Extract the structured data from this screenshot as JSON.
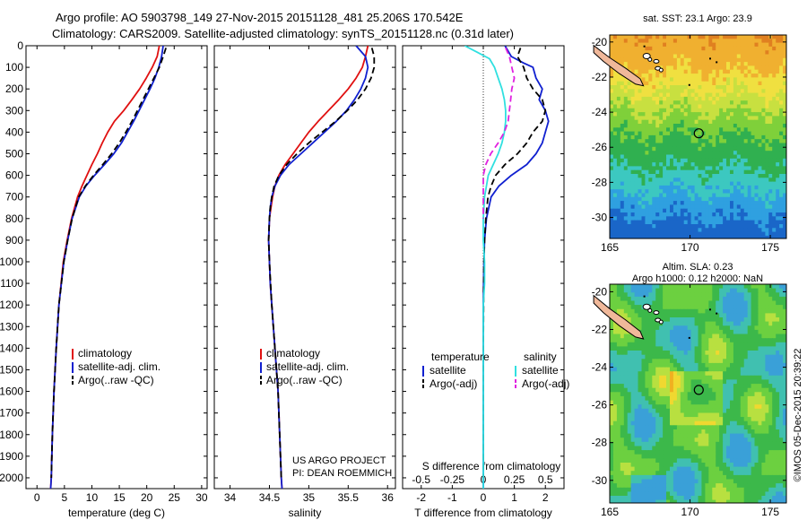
{
  "header": {
    "line1": "Argo profile: AO 5903798_149 27-Nov-2015 20151128_481 25.206S 170.542E",
    "line2": "Climatology: CARS2009. Satellite-adjusted climatology: synTS_20151128.nc (0.31d later)"
  },
  "side_text": "©IMOS 05-Dec-2015 20:39:22",
  "project_text": [
    "US ARGO PROJECT",
    "PI: DEAN ROEMMICH"
  ],
  "colors": {
    "climatology": "#e01010",
    "satellite": "#1020d0",
    "argo": "#000000",
    "salinity_sat": "#30e0e0",
    "salinity_argo": "#e020e0"
  },
  "chart_data": [
    {
      "type": "line",
      "panel": "temperature",
      "xlabel": "temperature (deg C)",
      "ylabel": "",
      "xlim": [
        -2,
        31
      ],
      "ylim": [
        2050,
        0
      ],
      "xticks": [
        0,
        5,
        10,
        15,
        20,
        25,
        30
      ],
      "yticks": [
        0,
        100,
        200,
        300,
        400,
        500,
        600,
        700,
        800,
        900,
        1000,
        1100,
        1200,
        1300,
        1400,
        1500,
        1600,
        1700,
        1800,
        1900,
        2000
      ],
      "legend": [
        "climatology",
        "satellite-adj. clim.",
        "Argo(..raw -QC)"
      ],
      "legend_placement": "lower-right",
      "series": [
        {
          "name": "climatology",
          "style": "solid",
          "y": [
            0,
            50,
            100,
            150,
            200,
            250,
            300,
            350,
            400,
            450,
            500,
            550,
            600,
            650,
            700,
            800,
            900,
            1000,
            1200,
            1400,
            1600,
            1800,
            2000,
            2050
          ],
          "x": [
            22.3,
            21.9,
            21.0,
            19.9,
            18.7,
            17.3,
            15.8,
            14.1,
            12.9,
            11.9,
            11.0,
            10.0,
            9.1,
            8.2,
            7.4,
            6.3,
            5.5,
            4.8,
            4.0,
            3.5,
            3.1,
            2.8,
            2.6,
            2.5
          ]
        },
        {
          "name": "satellite-adj. clim.",
          "style": "solid",
          "y": [
            0,
            50,
            100,
            150,
            200,
            250,
            300,
            350,
            400,
            450,
            500,
            550,
            600,
            650,
            700,
            800,
            900,
            1000,
            1200,
            1400,
            1600,
            1800,
            2000,
            2050
          ],
          "x": [
            23.0,
            22.7,
            22.2,
            21.5,
            20.6,
            19.6,
            18.6,
            17.6,
            16.5,
            15.4,
            14.0,
            12.3,
            10.5,
            8.9,
            7.7,
            6.4,
            5.6,
            4.9,
            4.0,
            3.5,
            3.1,
            2.8,
            2.6,
            2.5
          ]
        },
        {
          "name": "Argo(..raw -QC)",
          "style": "dashed",
          "y": [
            10,
            50,
            100,
            150,
            200,
            250,
            300,
            350,
            400,
            450,
            500,
            550,
            600,
            650,
            700,
            800,
            900,
            1000,
            1200,
            1400,
            1600,
            1800,
            2000
          ],
          "x": [
            23.5,
            23.0,
            22.3,
            21.3,
            20.3,
            19.3,
            18.3,
            17.3,
            16.2,
            15.0,
            13.6,
            12.0,
            10.3,
            8.8,
            7.6,
            6.4,
            5.6,
            4.9,
            4.0,
            3.5,
            3.1,
            2.8,
            2.6
          ]
        }
      ]
    },
    {
      "type": "line",
      "panel": "salinity",
      "xlabel": "salinity",
      "ylabel": "",
      "xlim": [
        33.8,
        36.1
      ],
      "ylim": [
        2050,
        0
      ],
      "xticks": [
        34,
        34.5,
        35,
        35.5,
        36
      ],
      "legend": [
        "climatology",
        "satellite-adj. clim.",
        "Argo(..raw -QC)"
      ],
      "legend_placement": "lower-right",
      "series": [
        {
          "name": "climatology",
          "style": "solid",
          "y": [
            0,
            50,
            100,
            150,
            200,
            250,
            300,
            350,
            400,
            450,
            500,
            550,
            600,
            650,
            700,
            750,
            800,
            900,
            1000,
            1100,
            1200,
            1400,
            1600,
            1800,
            2000,
            2050
          ],
          "x": [
            35.75,
            35.72,
            35.68,
            35.6,
            35.5,
            35.38,
            35.25,
            35.12,
            35.0,
            34.9,
            34.8,
            34.7,
            34.62,
            34.57,
            34.54,
            34.52,
            34.5,
            34.49,
            34.5,
            34.51,
            34.53,
            34.57,
            34.61,
            34.63,
            34.65,
            34.66
          ]
        },
        {
          "name": "satellite-adj. clim.",
          "style": "solid",
          "y": [
            0,
            50,
            100,
            150,
            200,
            250,
            300,
            350,
            400,
            450,
            500,
            550,
            600,
            650,
            700,
            750,
            800,
            900,
            1000,
            1100,
            1200,
            1400,
            1600,
            1800,
            2000,
            2050
          ],
          "x": [
            35.6,
            35.72,
            35.75,
            35.72,
            35.66,
            35.58,
            35.48,
            35.35,
            35.2,
            35.05,
            34.9,
            34.75,
            34.64,
            34.57,
            34.53,
            34.51,
            34.5,
            34.49,
            34.5,
            34.51,
            34.53,
            34.57,
            34.61,
            34.63,
            34.65,
            34.66
          ]
        },
        {
          "name": "Argo(..raw -QC)",
          "style": "dashed",
          "y": [
            10,
            50,
            100,
            150,
            200,
            250,
            300,
            350,
            400,
            450,
            500,
            550,
            600,
            650,
            700,
            750,
            800,
            900,
            1000,
            1200,
            1400,
            1600,
            1800,
            2000
          ],
          "x": [
            35.8,
            35.83,
            35.83,
            35.79,
            35.72,
            35.62,
            35.49,
            35.34,
            35.17,
            35.0,
            34.85,
            34.72,
            34.62,
            34.56,
            34.53,
            34.51,
            34.5,
            34.49,
            34.5,
            34.53,
            34.57,
            34.61,
            34.63,
            34.65
          ]
        }
      ]
    },
    {
      "type": "line",
      "panel": "differences",
      "xlabel": "T difference from climatology",
      "xlabel2": "S difference from climatology",
      "xlim": [
        -2.6,
        2.6
      ],
      "x2lim": [
        -0.65,
        0.65
      ],
      "ylim": [
        2050,
        0
      ],
      "xticks": [
        -2,
        -1,
        0,
        1,
        2
      ],
      "x2ticks": [
        -0.5,
        -0.25,
        0,
        0.25,
        0.5
      ],
      "legend_groups": [
        {
          "title": "temperature",
          "entries": [
            "satellite",
            "Argo(-adj)"
          ]
        },
        {
          "title": "salinity",
          "entries": [
            "satellite",
            "Argo(-adj)"
          ]
        }
      ],
      "legend_placement": "lower-center",
      "series": [
        {
          "name": "temperature satellite",
          "style": "solid",
          "y": [
            0,
            50,
            80,
            100,
            150,
            200,
            250,
            300,
            350,
            400,
            450,
            500,
            550,
            600,
            650,
            700,
            800,
            900,
            1000,
            1100,
            1200,
            1400,
            1600,
            1800,
            2000,
            2050
          ],
          "x": [
            0.7,
            0.9,
            1.3,
            1.6,
            1.7,
            1.9,
            1.8,
            2.0,
            2.1,
            2.0,
            1.9,
            1.7,
            1.4,
            0.9,
            0.5,
            0.25,
            0.1,
            0.04,
            0.02,
            0.01,
            0.0,
            0.0,
            0.0,
            0.0,
            0.0,
            0.0
          ]
        },
        {
          "name": "temperature Argo(-adj)",
          "style": "dashed",
          "y": [
            10,
            50,
            100,
            150,
            200,
            250,
            300,
            350,
            400,
            450,
            500,
            550,
            600,
            650,
            700,
            800,
            900,
            1000,
            1200,
            1400,
            1600,
            1800,
            2000
          ],
          "x": [
            1.2,
            1.1,
            1.3,
            1.4,
            1.6,
            1.9,
            2.0,
            1.9,
            1.6,
            1.4,
            1.1,
            0.7,
            0.4,
            0.25,
            0.15,
            0.08,
            0.04,
            0.02,
            0.01,
            0.0,
            0.0,
            0.0,
            0.0
          ]
        },
        {
          "name": "salinity satellite",
          "style": "solid",
          "y": [
            0,
            30,
            60,
            100,
            150,
            200,
            250,
            300,
            350,
            400,
            450,
            500,
            550,
            600,
            700,
            800,
            900,
            1000,
            1100,
            1200,
            1400,
            1600,
            1800,
            2000,
            2050
          ],
          "x": [
            -0.15,
            -0.05,
            0.05,
            0.09,
            0.12,
            0.15,
            0.17,
            0.18,
            0.18,
            0.17,
            0.15,
            0.12,
            0.08,
            0.04,
            0.01,
            0.0,
            0.0,
            0.01,
            0.01,
            0.0,
            0.0,
            0.0,
            0.0,
            0.0,
            0.0
          ]
        },
        {
          "name": "salinity Argo(-adj)",
          "style": "dashed",
          "y": [
            10,
            50,
            100,
            150,
            200,
            250,
            300,
            350,
            400,
            450,
            500,
            550,
            600,
            650,
            700,
            800
          ],
          "x": [
            0.18,
            0.21,
            0.23,
            0.25,
            0.23,
            0.22,
            0.21,
            0.2,
            0.17,
            0.12,
            0.06,
            0.02,
            0.0,
            0.0,
            0.0,
            0.0
          ]
        }
      ]
    },
    {
      "type": "heatmap",
      "panel": "sst_map",
      "title": "sat. SST: 23.1  Argo: 23.9",
      "xlim": [
        165,
        176
      ],
      "ylim": [
        -31.2,
        -19.6
      ],
      "xticks": [
        165,
        170,
        175
      ],
      "yticks": [
        -20,
        -22,
        -24,
        -26,
        -28,
        -30
      ],
      "marker": {
        "lon": 170.542,
        "lat": -25.206
      }
    },
    {
      "type": "heatmap",
      "panel": "sla_map",
      "title": "Altim. SLA: 0.23",
      "subtitle": "Argo h1000: 0.12 h2000: NaN",
      "xlim": [
        165,
        176
      ],
      "ylim": [
        -31.2,
        -19.6
      ],
      "xticks": [
        165,
        170,
        175
      ],
      "yticks": [
        -20,
        -22,
        -24,
        -26,
        -28,
        -30
      ],
      "marker": {
        "lon": 170.542,
        "lat": -25.206
      }
    }
  ]
}
